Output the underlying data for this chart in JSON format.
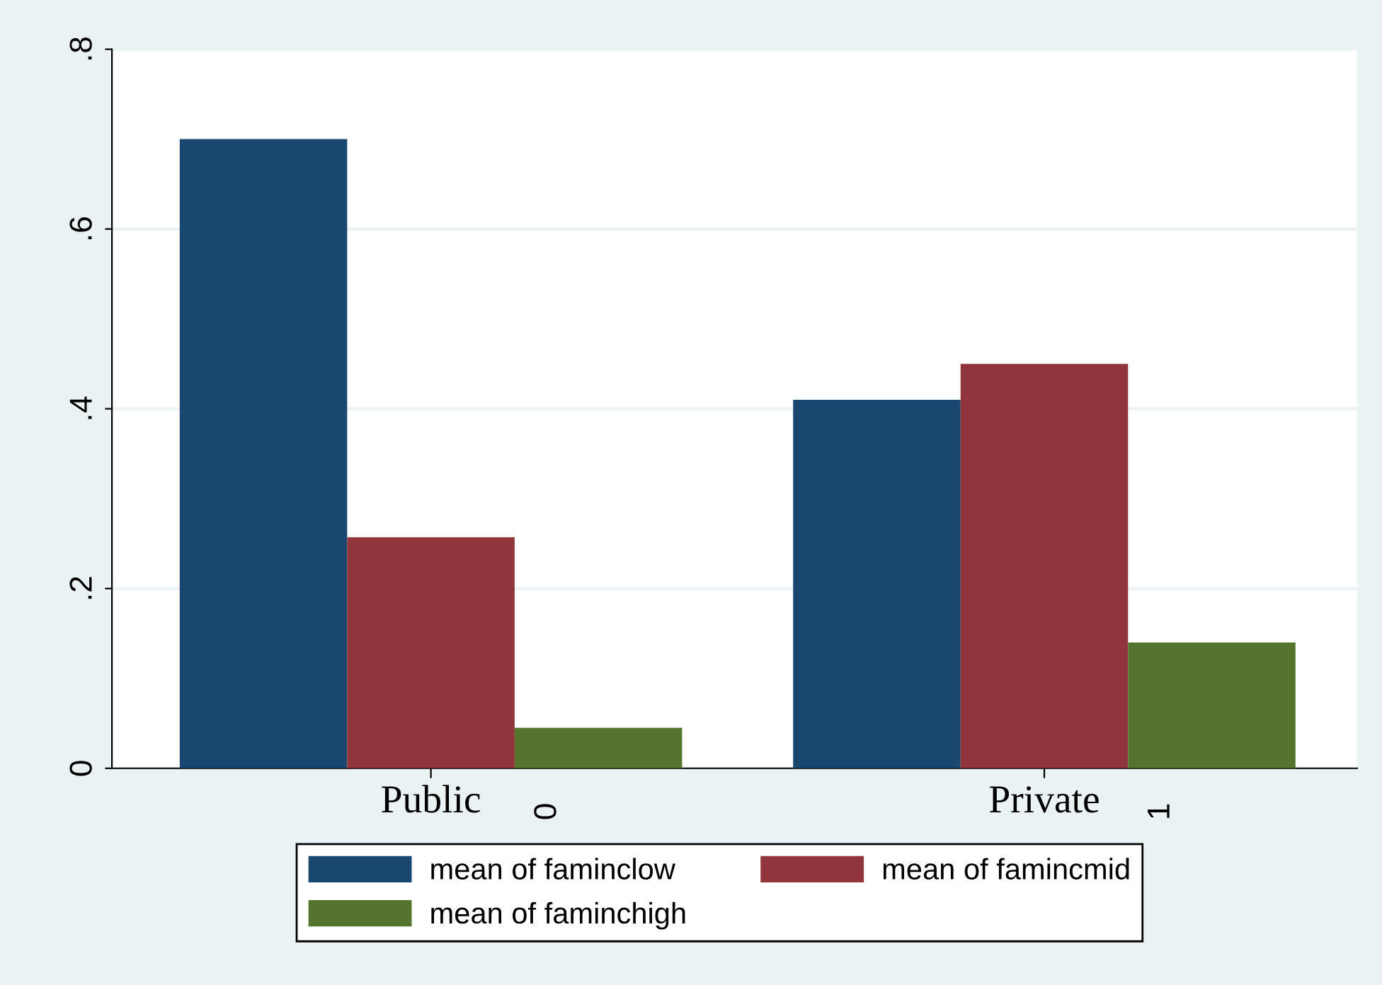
{
  "chart_data": {
    "type": "bar",
    "categories": [
      "Public",
      "Private"
    ],
    "series": [
      {
        "name": "mean of faminclow",
        "color": "#1a476f",
        "values": [
          0.7,
          0.41
        ]
      },
      {
        "name": "mean of famincmid",
        "color": "#90353b",
        "values": [
          0.257,
          0.45
        ]
      },
      {
        "name": "mean of faminchigh",
        "color": "#55752f",
        "values": [
          0.045,
          0.14
        ]
      }
    ],
    "ylim": [
      0,
      0.8
    ],
    "yticks": [
      0,
      {
        "value": 0.2,
        "label": ".2"
      },
      {
        "value": 0.4,
        "label": ".4"
      },
      {
        "value": 0.6,
        "label": ".6"
      },
      {
        "value": 0.8,
        "label": ".8"
      }
    ],
    "annotations": [
      "0",
      "1"
    ],
    "grid": "y",
    "legend": "bottom"
  }
}
